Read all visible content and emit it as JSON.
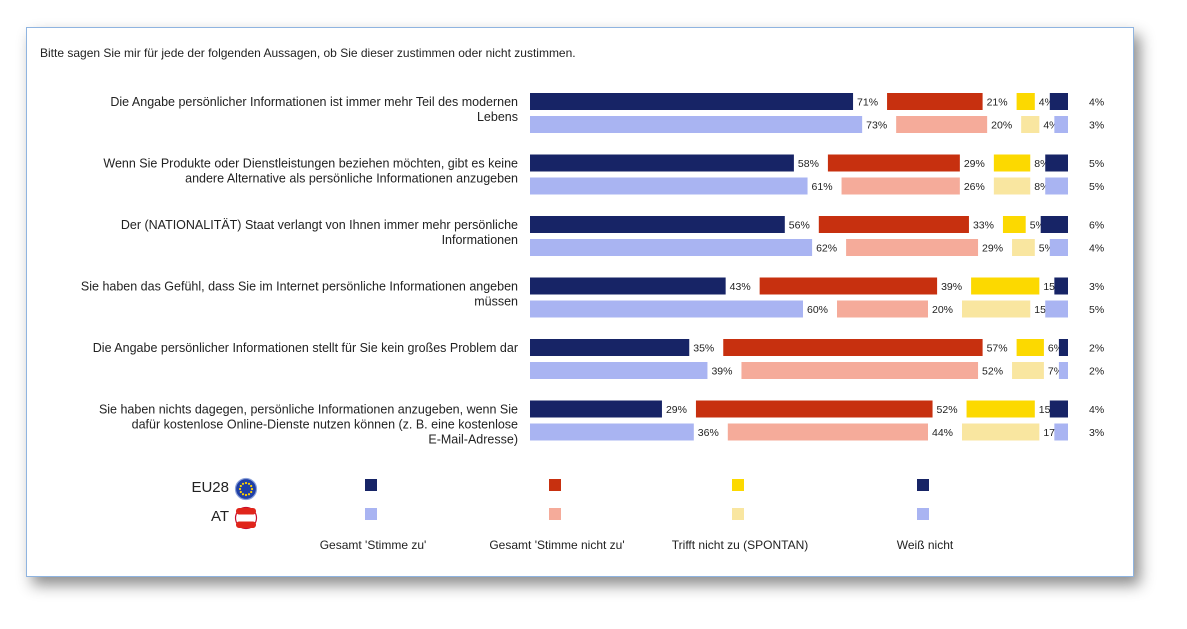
{
  "question": "Bitte sagen Sie mir für jede der folgenden Aussagen, ob Sie dieser zustimmen oder nicht zustimmen.",
  "chart_data": {
    "type": "bar",
    "orientation": "horizontal-stacked",
    "categories": [
      [
        "Die Angabe persönlicher Informationen ist immer mehr Teil des modernen",
        "Lebens"
      ],
      [
        "Wenn Sie Produkte oder Dienstleistungen beziehen möchten, gibt es keine",
        "andere Alternative als persönliche Informationen anzugeben"
      ],
      [
        "Der (NATIONALITÄT) Staat verlangt von Ihnen immer mehr persönliche",
        "Informationen"
      ],
      [
        "Sie haben das Gefühl, dass Sie im Internet persönliche Informationen angeben",
        "müssen"
      ],
      [
        "Die Angabe persönlicher Informationen stellt für Sie kein großes Problem dar"
      ],
      [
        "Sie haben nichts dagegen, persönliche Informationen anzugeben, wenn Sie",
        "dafür kostenlose Online-Dienste nutzen können (z. B. eine kostenlose",
        "E-Mail-Adresse)"
      ]
    ],
    "groups": [
      "EU28",
      "AT"
    ],
    "segments": [
      {
        "name": "Gesamt 'Stimme zu'",
        "colors": {
          "EU28": "#172466",
          "AT": "#a9b4f2"
        }
      },
      {
        "name": "Gesamt 'Stimme nicht zu'",
        "colors": {
          "EU28": "#c7300f",
          "AT": "#f5ab9a"
        }
      },
      {
        "name": "Trifft nicht zu (SPONTAN)",
        "colors": {
          "EU28": "#fcd900",
          "AT": "#f9e6a0"
        }
      },
      {
        "name": "Weiß nicht",
        "colors": {
          "EU28": "#172466",
          "AT": "#a9b4f2"
        }
      }
    ],
    "values": {
      "EU28": [
        [
          71,
          21,
          4,
          4
        ],
        [
          58,
          29,
          8,
          5
        ],
        [
          56,
          33,
          5,
          6
        ],
        [
          43,
          39,
          15,
          3
        ],
        [
          35,
          57,
          6,
          2
        ],
        [
          29,
          52,
          15,
          4
        ]
      ],
      "AT": [
        [
          73,
          20,
          4,
          3
        ],
        [
          61,
          26,
          8,
          5
        ],
        [
          62,
          29,
          5,
          4
        ],
        [
          60,
          20,
          15,
          5
        ],
        [
          39,
          52,
          7,
          2
        ],
        [
          36,
          44,
          17,
          3
        ]
      ]
    },
    "unit": "%"
  }
}
